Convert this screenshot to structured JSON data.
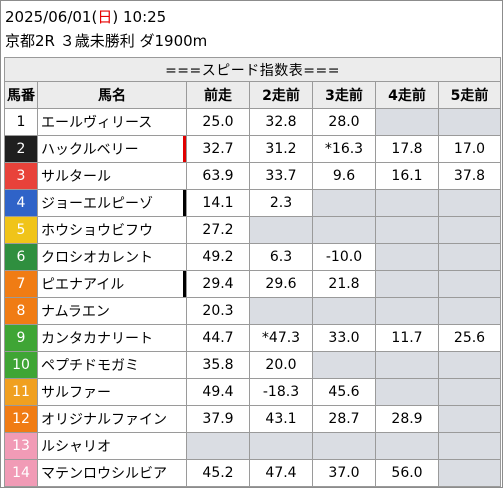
{
  "header": {
    "date": "2025/06/01",
    "weekday_open": "(",
    "weekday": "日",
    "weekday_close": ")",
    "time": "10:25",
    "race_info": "京都2R ３歳未勝利 ダ1900m"
  },
  "table": {
    "banner": "===スピード指数表===",
    "columns": [
      "馬番",
      "馬名",
      "前走",
      "2走前",
      "3走前",
      "4走前",
      "5走前"
    ],
    "gate_colors": {
      "1": "#ffffff",
      "2": "#1f1f1f",
      "3": "#e8423a",
      "4": "#2f63c8",
      "5": "#f0c419",
      "6": "#2f8f3f",
      "7": "#f07c14",
      "8": "#f3a0c0"
    },
    "rows": [
      {
        "num": "1",
        "gate": "1",
        "name": "エールヴィリース",
        "mark": "",
        "vals": [
          "25.0",
          "32.8",
          "28.0",
          "",
          ""
        ]
      },
      {
        "num": "2",
        "gate": "2",
        "name": "ハックルベリー",
        "mark": "red",
        "vals": [
          "32.7",
          "31.2",
          "*16.3",
          "17.8",
          "17.0"
        ]
      },
      {
        "num": "3",
        "gate": "3",
        "name": "サルタール",
        "mark": "",
        "vals": [
          "63.9",
          "33.7",
          "9.6",
          "16.1",
          "37.8"
        ]
      },
      {
        "num": "4",
        "gate": "4",
        "name": "ジョーエルピーゾ",
        "mark": "black",
        "vals": [
          "14.1",
          "2.3",
          "",
          "",
          ""
        ]
      },
      {
        "num": "5",
        "gate": "5",
        "name": "ホウショウビフウ",
        "mark": "",
        "vals": [
          "27.2",
          "",
          "",
          "",
          ""
        ]
      },
      {
        "num": "6",
        "gate": "6",
        "name": "クロシオカレント",
        "mark": "",
        "vals": [
          "49.2",
          "6.3",
          "-10.0",
          "",
          ""
        ]
      },
      {
        "num": "7",
        "gate": "7",
        "name": "ピエナアイル",
        "mark": "black",
        "vals": [
          "29.4",
          "29.6",
          "21.8",
          "",
          ""
        ]
      },
      {
        "num": "8",
        "gate": "8",
        "name": "ナムラエン",
        "mark": "",
        "vals": [
          "20.3",
          "",
          "",
          "",
          ""
        ]
      },
      {
        "num": "9",
        "gate": "9",
        "name": "カンタカナリート",
        "mark": "",
        "vals": [
          "44.7",
          "*47.3",
          "33.0",
          "11.7",
          "25.6"
        ]
      },
      {
        "num": "10",
        "gate": "10",
        "name": "ペプチドモガミ",
        "mark": "",
        "vals": [
          "35.8",
          "20.0",
          "",
          "",
          ""
        ]
      },
      {
        "num": "11",
        "gate": "11",
        "name": "サルファー",
        "mark": "",
        "vals": [
          "49.4",
          "-18.3",
          "45.6",
          "",
          ""
        ]
      },
      {
        "num": "12",
        "gate": "12",
        "name": "オリジナルファイン",
        "mark": "",
        "vals": [
          "37.9",
          "43.1",
          "28.7",
          "28.9",
          ""
        ]
      },
      {
        "num": "13",
        "gate": "13",
        "name": "ルシャリオ",
        "mark": "",
        "vals": [
          "",
          "",
          "",
          "",
          ""
        ]
      },
      {
        "num": "14",
        "gate": "14",
        "name": "マテンロウシルビア",
        "mark": "",
        "vals": [
          "45.2",
          "47.4",
          "37.0",
          "56.0",
          ""
        ]
      }
    ]
  },
  "colors": {
    "gate_bg": [
      "#ffffff",
      "#1f1f1f",
      "#e8423a",
      "#2f63c8",
      "#f0c419",
      "#2f8f3f",
      "#f07c14",
      "#f07c14",
      "#3fa535",
      "#3fa535",
      "#f0a020",
      "#f07c14",
      "#f19bb6",
      "#f19bb6"
    ],
    "gate_fg": [
      "#000000",
      "#ffffff",
      "#ffffff",
      "#ffffff",
      "#ffffff",
      "#ffffff",
      "#ffffff",
      "#ffffff",
      "#ffffff",
      "#ffffff",
      "#ffffff",
      "#ffffff",
      "#ffffff",
      "#ffffff"
    ],
    "empty_cell": "#dadde3",
    "header_bg": "#ececec",
    "weekday_red": "#e60000"
  }
}
